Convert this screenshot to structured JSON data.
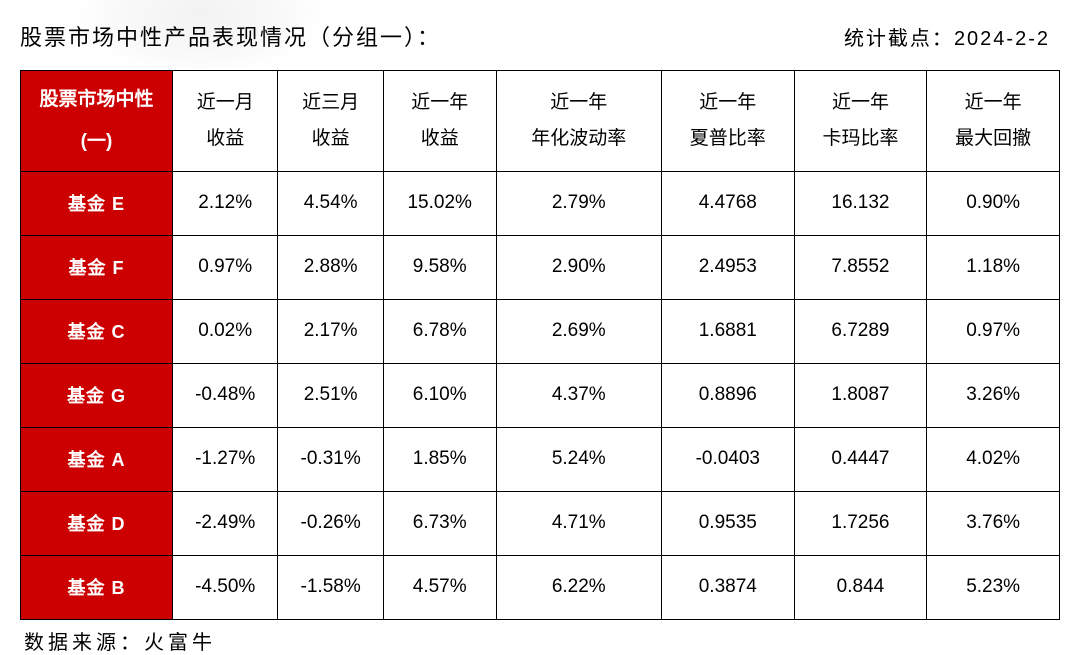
{
  "header": {
    "title": "股票市场中性产品表现情况（分组一）：",
    "cutoff_label": "统计截点：",
    "cutoff_date": "2024-2-2"
  },
  "table": {
    "type": "table",
    "colors": {
      "row_header_bg": "#cc0000",
      "row_header_text": "#ffffff",
      "cell_bg": "#ffffff",
      "cell_text": "#000000",
      "border": "#000000"
    },
    "font": {
      "header_size_pt": 19,
      "cell_size_pt": 19,
      "row_header_weight": "bold"
    },
    "columns": [
      {
        "line1": "股票市场中性",
        "line2": "(一)"
      },
      {
        "line1": "近一月",
        "line2": "收益"
      },
      {
        "line1": "近三月",
        "line2": "收益"
      },
      {
        "line1": "近一年",
        "line2": "收益"
      },
      {
        "line1": "近一年",
        "line2": "年化波动率"
      },
      {
        "line1": "近一年",
        "line2": "夏普比率"
      },
      {
        "line1": "近一年",
        "line2": "卡玛比率"
      },
      {
        "line1": "近一年",
        "line2": "最大回撤"
      }
    ],
    "rows": [
      {
        "name": "基金 E",
        "cells": [
          "2.12%",
          "4.54%",
          "15.02%",
          "2.79%",
          "4.4768",
          "16.132",
          "0.90%"
        ]
      },
      {
        "name": "基金 F",
        "cells": [
          "0.97%",
          "2.88%",
          "9.58%",
          "2.90%",
          "2.4953",
          "7.8552",
          "1.18%"
        ]
      },
      {
        "name": "基金 C",
        "cells": [
          "0.02%",
          "2.17%",
          "6.78%",
          "2.69%",
          "1.6881",
          "6.7289",
          "0.97%"
        ]
      },
      {
        "name": "基金 G",
        "cells": [
          "-0.48%",
          "2.51%",
          "6.10%",
          "4.37%",
          "0.8896",
          "1.8087",
          "3.26%"
        ]
      },
      {
        "name": "基金 A",
        "cells": [
          "-1.27%",
          "-0.31%",
          "1.85%",
          "5.24%",
          "-0.0403",
          "0.4447",
          "4.02%"
        ]
      },
      {
        "name": "基金 D",
        "cells": [
          "-2.49%",
          "-0.26%",
          "6.73%",
          "4.71%",
          "0.9535",
          "1.7256",
          "3.76%"
        ]
      },
      {
        "name": "基金 B",
        "cells": [
          "-4.50%",
          "-1.58%",
          "4.57%",
          "6.22%",
          "0.3874",
          "0.844",
          "5.23%"
        ]
      }
    ]
  },
  "source": {
    "label": "数据来源：",
    "value": "火富牛"
  }
}
